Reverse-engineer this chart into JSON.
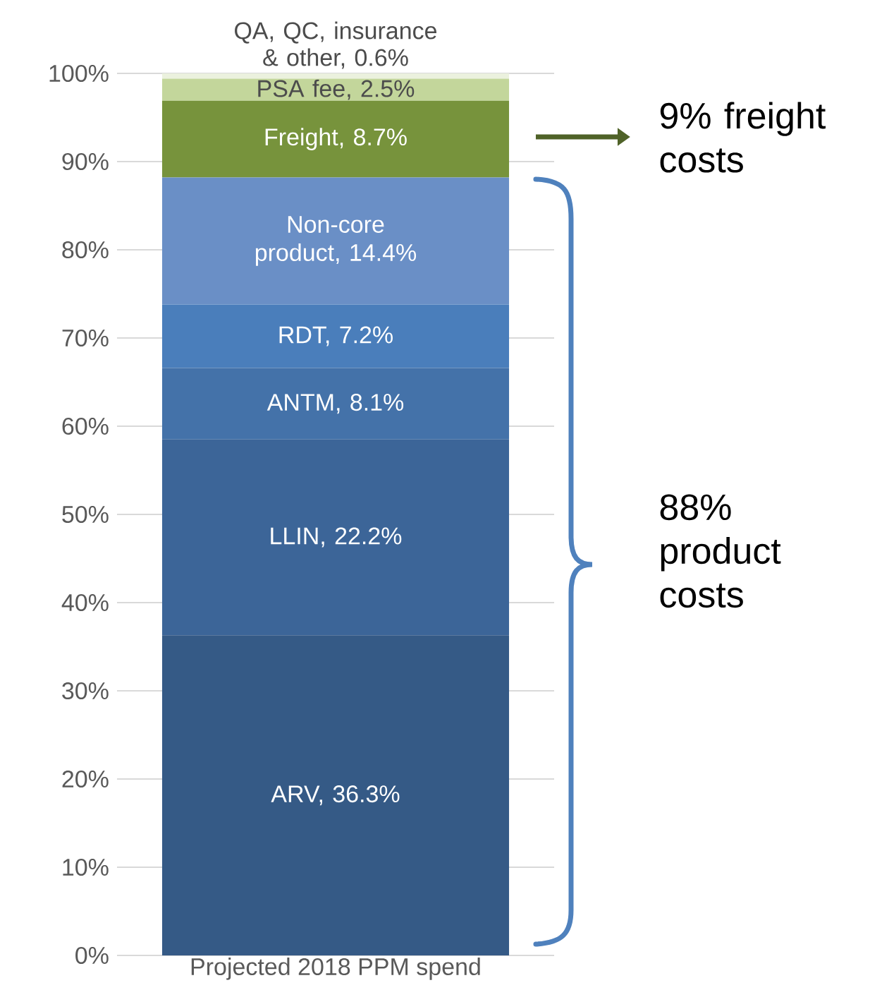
{
  "chart_data": {
    "type": "bar",
    "stacked": true,
    "categories": [
      "Projected 2018 PPM spend"
    ],
    "series": [
      {
        "color": "#355a86",
        "values": [
          36.3
        ],
        "value_labels": [
          "ARV, 36.3%"
        ]
      },
      {
        "color": "#3c6598",
        "values": [
          22.2
        ],
        "value_labels": [
          "LLIN, 22.2%"
        ]
      },
      {
        "color": "#4472a9",
        "values": [
          8.1
        ],
        "value_labels": [
          "ANTM, 8.1%"
        ]
      },
      {
        "color": "#4a7ebb",
        "values": [
          7.2
        ],
        "value_labels": [
          "RDT, 7.2%"
        ]
      },
      {
        "color": "#6a8fc6",
        "values": [
          14.4
        ],
        "value_labels": [
          "Non-core product, 14.4%"
        ]
      },
      {
        "color": "#77933c",
        "values": [
          8.7
        ],
        "value_labels": [
          "Freight, 8.7%"
        ]
      },
      {
        "color": "#c3d69b",
        "values": [
          2.5
        ],
        "value_labels": [
          "PSA fee, 2.5%"
        ]
      },
      {
        "color": "#ebf1de",
        "values": [
          0.6
        ],
        "value_labels": [
          "QA, QC, insurance & other, 0.6%"
        ]
      }
    ],
    "ylim": [
      0,
      100
    ],
    "yticks": [
      {
        "value": 0,
        "label": "0%"
      },
      {
        "value": 10,
        "label": "10%"
      },
      {
        "value": 20,
        "label": "20%"
      },
      {
        "value": 30,
        "label": "30%"
      },
      {
        "value": 40,
        "label": "40%"
      },
      {
        "value": 50,
        "label": "50%"
      },
      {
        "value": 60,
        "label": "60%"
      },
      {
        "value": 70,
        "label": "70%"
      },
      {
        "value": 80,
        "label": "80%"
      },
      {
        "value": 90,
        "label": "90%"
      },
      {
        "value": 100,
        "label": "100%"
      }
    ],
    "grid": "y",
    "annotations": [
      "9% freight costs",
      "88% product costs"
    ]
  }
}
